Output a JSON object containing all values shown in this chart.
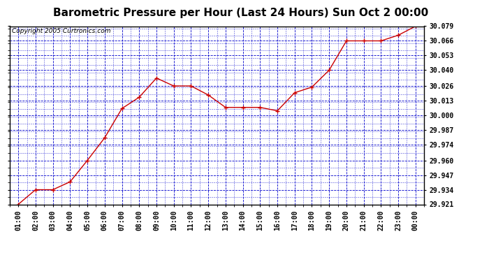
{
  "title": "Barometric Pressure per Hour (Last 24 Hours) Sun Oct 2 00:00",
  "copyright": "Copyright 2005 Curtronics.com",
  "x_labels": [
    "01:00",
    "02:00",
    "03:00",
    "04:00",
    "05:00",
    "06:00",
    "07:00",
    "08:00",
    "09:00",
    "10:00",
    "11:00",
    "12:00",
    "13:00",
    "14:00",
    "15:00",
    "16:00",
    "17:00",
    "18:00",
    "19:00",
    "20:00",
    "21:00",
    "22:00",
    "23:00",
    "00:00"
  ],
  "y_values": [
    29.921,
    29.934,
    29.934,
    29.941,
    29.96,
    29.98,
    30.006,
    30.016,
    30.033,
    30.026,
    30.026,
    30.018,
    30.007,
    30.007,
    30.007,
    30.004,
    30.02,
    30.025,
    30.04,
    30.066,
    30.066,
    30.066,
    30.071,
    30.079
  ],
  "ylim_min": 29.921,
  "ylim_max": 30.079,
  "yticks": [
    29.921,
    29.934,
    29.947,
    29.96,
    29.974,
    29.987,
    30.0,
    30.013,
    30.026,
    30.04,
    30.053,
    30.066,
    30.079
  ],
  "line_color": "#cc0000",
  "marker_color": "#cc0000",
  "fig_bg_color": "#ffffff",
  "plot_bg_color": "#ffffff",
  "grid_color": "#0000cc",
  "title_fontsize": 11,
  "tick_fontsize": 7,
  "copyright_fontsize": 6.5
}
